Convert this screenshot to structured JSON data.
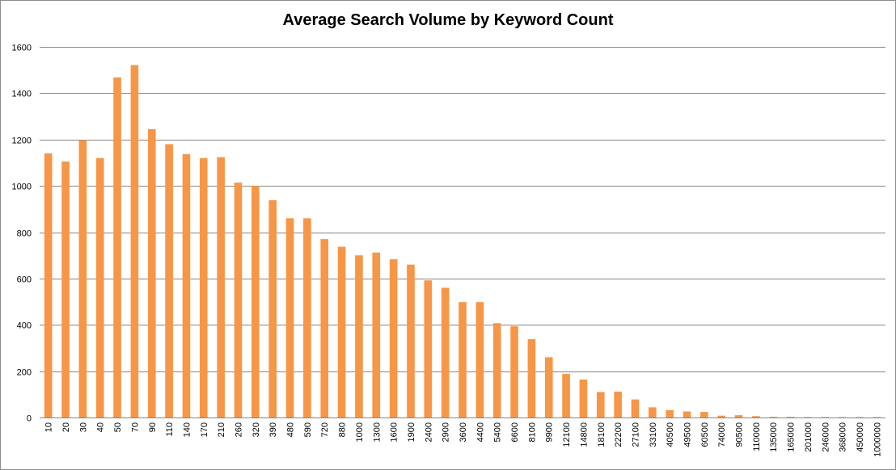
{
  "chart_data": {
    "type": "bar",
    "title": "Average Search Volume by Keyword Count",
    "xlabel": "",
    "ylabel": "",
    "ylim": [
      0,
      1600
    ],
    "yticks": [
      0,
      200,
      400,
      600,
      800,
      1000,
      1200,
      1400,
      1600
    ],
    "grid": true,
    "legend": "none",
    "bar_color": "#f79646",
    "gridline_color": "#868686",
    "categories": [
      "10",
      "20",
      "30",
      "40",
      "50",
      "70",
      "90",
      "110",
      "140",
      "170",
      "210",
      "260",
      "320",
      "390",
      "480",
      "590",
      "720",
      "880",
      "1000",
      "1300",
      "1600",
      "1900",
      "2400",
      "2900",
      "3600",
      "4400",
      "5400",
      "6600",
      "8100",
      "9900",
      "12100",
      "14800",
      "18100",
      "22200",
      "27100",
      "33100",
      "40500",
      "49500",
      "60500",
      "74000",
      "90500",
      "110000",
      "135000",
      "165000",
      "201000",
      "246000",
      "368000",
      "450000",
      "1000000"
    ],
    "values": [
      1140,
      1105,
      1197,
      1120,
      1468,
      1521,
      1245,
      1180,
      1137,
      1120,
      1124,
      1014,
      1000,
      938,
      860,
      860,
      770,
      737,
      700,
      712,
      683,
      660,
      592,
      560,
      498,
      498,
      407,
      394,
      338,
      260,
      188,
      164,
      110,
      112,
      78,
      44,
      32,
      26,
      24,
      8,
      10,
      6,
      3,
      3,
      2,
      2,
      2,
      2,
      2
    ]
  }
}
